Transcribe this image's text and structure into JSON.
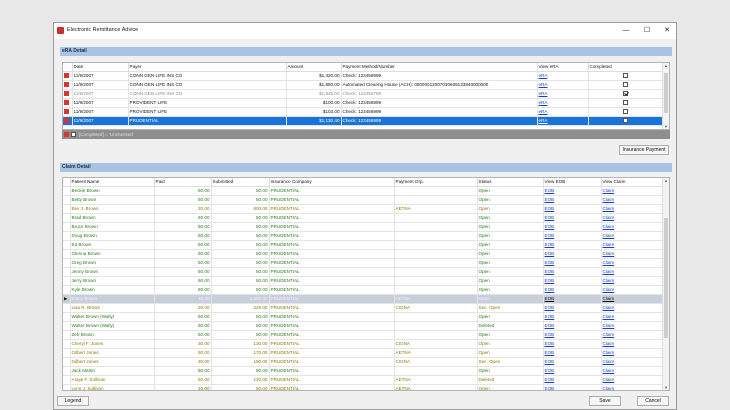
{
  "window": {
    "title": "Electronic Remittance Advice",
    "minimize": "—",
    "maximize": "☐",
    "close": "✕"
  },
  "era": {
    "section_title": "eRA Detail",
    "columns": [
      "Date",
      "Payer",
      "Amount",
      "Payment Method/Number",
      "View eRA",
      "Completed"
    ],
    "rows": [
      {
        "date": "11/9/2007",
        "payer": "CONN GEN LIFE INS CO",
        "amount": "$1,420.00",
        "method": "Check: 123456999",
        "view": "eRA",
        "completed": false,
        "state": ""
      },
      {
        "date": "11/9/2007",
        "payer": "CONN GEN LIFE INS CO",
        "amount": "$1,850.00",
        "method": "Automated Clearing House (ACH): 00000012007030609133940000000",
        "view": "eRA",
        "completed": false,
        "state": ""
      },
      {
        "date": "11/9/2007",
        "payer": "CONN GEN LIFE INS CO",
        "amount": "$1,945.00",
        "method": "Check: 123456789",
        "view": "eRA",
        "completed": true,
        "state": "grey"
      },
      {
        "date": "11/9/2007",
        "payer": "PROVIDENT LIFE",
        "amount": "$100.00",
        "method": "Check: 123456999",
        "view": "eRA",
        "completed": false,
        "state": ""
      },
      {
        "date": "11/9/2007",
        "payer": "PROVIDENT LIFE",
        "amount": "$103.00",
        "method": "Check: 123456999",
        "view": "eRA",
        "completed": false,
        "state": ""
      },
      {
        "date": "11/9/2007",
        "payer": "PRUDENTIAL",
        "amount": "$1,130.40",
        "method": "Check: 123456999",
        "view": "eRA",
        "completed": false,
        "state": "sel"
      }
    ],
    "filter_text": "[Completed] = 'Unchecked'",
    "insurance_payment_button": "Insurance Payment"
  },
  "claims": {
    "section_title": "Claim Detail",
    "columns": [
      "Patient Name",
      "Paid",
      "Submitted",
      "Insurance Company",
      "Payment Grp.",
      "Status",
      "View EOB",
      "View Claim"
    ],
    "rows": [
      {
        "name": "Beckie Brown",
        "paid": "50.00",
        "submitted": "50.00",
        "company": "PRUDENTIAL",
        "group": "",
        "status": "Open",
        "eob": "EOB",
        "claim": "Claim",
        "style": "green"
      },
      {
        "name": "Betty Brown",
        "paid": "50.00",
        "submitted": "50.00",
        "company": "PRUDENTIAL",
        "group": "",
        "status": "Open",
        "eob": "EOB",
        "claim": "Claim",
        "style": "green"
      },
      {
        "name": "Bev J. Brown",
        "paid": "20.00",
        "submitted": "800.00",
        "company": "PRUDENTIAL",
        "group": "AETNA",
        "status": "Open",
        "eob": "EOB",
        "claim": "Claim",
        "style": "olive"
      },
      {
        "name": "Brad Brown",
        "paid": "50.00",
        "submitted": "50.00",
        "company": "PRUDENTIAL",
        "group": "",
        "status": "Open",
        "eob": "EOB",
        "claim": "Claim",
        "style": "green"
      },
      {
        "name": "Bruce Brown",
        "paid": "50.00",
        "submitted": "50.00",
        "company": "PRUDENTIAL",
        "group": "",
        "status": "Open",
        "eob": "EOB",
        "claim": "Claim",
        "style": "green"
      },
      {
        "name": "Doug Brown",
        "paid": "50.00",
        "submitted": "50.00",
        "company": "PRUDENTIAL",
        "group": "",
        "status": "Open",
        "eob": "EOB",
        "claim": "Claim",
        "style": "green"
      },
      {
        "name": "Ed Brown",
        "paid": "50.00",
        "submitted": "50.00",
        "company": "PRUDENTIAL",
        "group": "",
        "status": "Open",
        "eob": "EOB",
        "claim": "Claim",
        "style": "green"
      },
      {
        "name": "Glenna Brown",
        "paid": "50.00",
        "submitted": "50.00",
        "company": "PRUDENTIAL",
        "group": "",
        "status": "Open",
        "eob": "EOB",
        "claim": "Claim",
        "style": "green"
      },
      {
        "name": "Greg Brown",
        "paid": "50.00",
        "submitted": "50.00",
        "company": "PRUDENTIAL",
        "group": "",
        "status": "Open",
        "eob": "EOB",
        "claim": "Claim",
        "style": "green"
      },
      {
        "name": "Jenny Brown",
        "paid": "50.00",
        "submitted": "50.00",
        "company": "PRUDENTIAL",
        "group": "",
        "status": "Open",
        "eob": "EOB",
        "claim": "Claim",
        "style": "green"
      },
      {
        "name": "Jerry Brown",
        "paid": "50.00",
        "submitted": "50.00",
        "company": "PRUDENTIAL",
        "group": "",
        "status": "Open",
        "eob": "EOB",
        "claim": "Claim",
        "style": "green"
      },
      {
        "name": "Kyle Brown",
        "paid": "50.00",
        "submitted": "50.00",
        "company": "PRUDENTIAL",
        "group": "",
        "status": "Open",
        "eob": "EOB",
        "claim": "Claim",
        "style": "green"
      },
      {
        "name": "Stacy Brown",
        "paid": "40.00",
        "submitted": "1,600.00",
        "company": "PRUDENTIAL",
        "group": "AETNA",
        "status": "Open",
        "eob": "EOB",
        "claim": "Claim",
        "style": "hl"
      },
      {
        "name": "Lisa R. Brown",
        "paid": "30.00",
        "submitted": "225.00",
        "company": "PRUDENTIAL",
        "group": "CIGNA",
        "status": "Sec. Open",
        "eob": "EOB",
        "claim": "Claim",
        "style": "olive"
      },
      {
        "name": "Walter Brown (Wally)",
        "paid": "50.00",
        "submitted": "50.00",
        "company": "PRUDENTIAL",
        "group": "",
        "status": "Open",
        "eob": "EOB",
        "claim": "Claim",
        "style": "green"
      },
      {
        "name": "Walter Brown (Wally)",
        "paid": "50.00",
        "submitted": "50.00",
        "company": "PRUDENTIAL",
        "group": "",
        "status": "Deleted",
        "eob": "EOB",
        "claim": "Claim",
        "style": "green"
      },
      {
        "name": "Zeb Brown",
        "paid": "50.00",
        "submitted": "50.00",
        "company": "PRUDENTIAL",
        "group": "",
        "status": "Open",
        "eob": "EOB",
        "claim": "Claim",
        "style": "green"
      },
      {
        "name": "Cheryl F. Jones",
        "paid": "30.00",
        "submitted": "130.00",
        "company": "PRUDENTIAL",
        "group": "CIGNA",
        "status": "Open",
        "eob": "EOB",
        "claim": "Claim",
        "style": "olive"
      },
      {
        "name": "Gilbert Jones",
        "paid": "50.00",
        "submitted": "170.00",
        "company": "PRUDENTIAL",
        "group": "AETNA",
        "status": "Open",
        "eob": "EOB",
        "claim": "Claim",
        "style": "olive"
      },
      {
        "name": "Gilbert Jones",
        "paid": "30.00",
        "submitted": "150.00",
        "company": "PRUDENTIAL",
        "group": "CIGNA",
        "status": "Sec. Open",
        "eob": "EOB",
        "claim": "Claim",
        "style": "olive"
      },
      {
        "name": "Jack Martin",
        "paid": "50.00",
        "submitted": "90.00",
        "company": "PRUDENTIAL",
        "group": "",
        "status": "Open",
        "eob": "EOB",
        "claim": "Claim",
        "style": "green"
      },
      {
        "name": "Angie F. Sullivan",
        "paid": "50.00",
        "submitted": "130.00",
        "company": "PRUDENTIAL",
        "group": "AETNA",
        "status": "Deleted",
        "eob": "EOB",
        "claim": "Claim",
        "style": "olive"
      },
      {
        "name": "Lynn J. Sullivan",
        "paid": "10.00",
        "submitted": "50.00",
        "company": "PRUDENTIAL",
        "group": "AETNA",
        "status": "Open",
        "eob": "EOB",
        "claim": "Claim",
        "style": "olive"
      }
    ]
  },
  "footer": {
    "legend_button": "Legend",
    "save_button": "Save",
    "cancel_button": "Cancel"
  }
}
